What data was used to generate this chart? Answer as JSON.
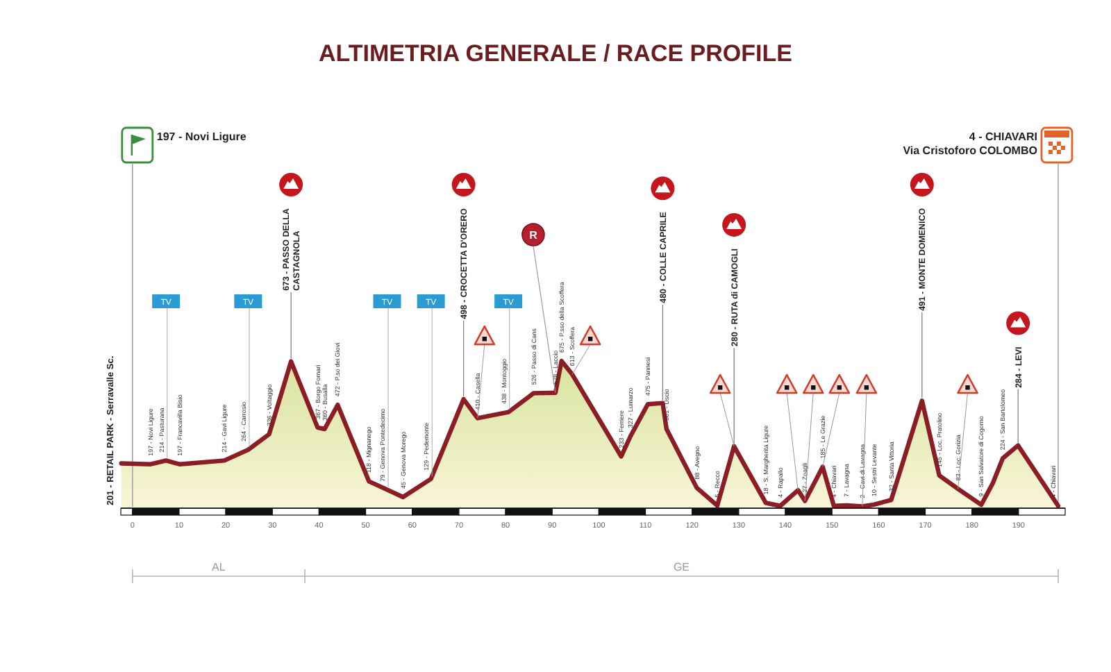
{
  "chart_data": {
    "type": "area",
    "title": "ALTIMETRIA GENERALE / RACE PROFILE",
    "color": "#8b1d24",
    "x": [
      -2.4,
      3.9,
      7.2,
      10.1,
      19.7,
      24.8,
      29.3,
      34,
      39.7,
      41.2,
      44,
      50.7,
      54.6,
      58,
      64,
      71,
      74,
      80.6,
      86,
      90.7,
      92,
      94.3,
      104.8,
      106.8,
      110.5,
      113.7,
      114.5,
      121,
      125.4,
      129,
      135.8,
      138.9,
      142.7,
      144.2,
      148,
      150.4,
      153.1,
      156.5,
      159,
      162.7,
      169.3,
      173,
      177,
      182,
      184.5,
      186.6,
      189.9,
      198.5
    ],
    "values": [
      201,
      197,
      214,
      197,
      214,
      264,
      336,
      673,
      367,
      360,
      472,
      118,
      79,
      45,
      129,
      498,
      410,
      438,
      526,
      528,
      675,
      613,
      233,
      327,
      475,
      480,
      361,
      88,
      5,
      280,
      18,
      4,
      77,
      27,
      185,
      4,
      7,
      2,
      10,
      32,
      491,
      145,
      83,
      9,
      110,
      224,
      284,
      4
    ],
    "value_labels": [
      "201 - RETAIL PARK - Serravalle Sc.",
      "197 - Novi Ligure",
      "214 - Pasturana",
      "197 - Francavilla Bisio",
      "214 - Gavi Ligure",
      "264 - Carrosio",
      "336 - Voltaggio",
      "673 - PASSO DELLA CASTAGNOLA",
      "367 - Borgo Fornari",
      "360 - Busalla",
      "472 - P.so dei Giovi",
      "118 - Mignanego",
      "79 - Genova Pontedecimo",
      "45 - Genova Morego",
      "129 - Pedemonte",
      "498 - CROCETTA D'ORERO",
      "410 - Casella",
      "438 - Montoggio",
      "526 - Passo di Cans",
      "528 - Laccio",
      "675 - P.sso della Scoffera",
      "613 - Scoffera",
      "233 - Ferriere",
      "327 - Lumarzo",
      "475 - Pannesi",
      "480 - COLLE CAPRILE",
      "361 - Uscio",
      "88 - Avegno",
      "5 - Recco",
      "280 - RUTA di CAMOGLI",
      "18 - S. Margherita Ligure",
      "4 - Rapallo",
      null,
      "27 - Zoagli",
      "185 - Le Grazie",
      "4 - Chiavari",
      "7 - Lavagna",
      "2 - Cavi di Lavagna",
      "10 - Sestri Levante",
      "32 - Santa Vittoria",
      "491 - MONTE DOMENICO",
      "145 - Loc. Pratolino",
      "83 - Loc. Gorizia",
      "9 - San Salvatore di Cogorno",
      null,
      "224 - San Bartolomeo",
      "284 - LEVI",
      "4 - Chiavari"
    ],
    "xlim": [
      -2.5,
      200
    ],
    "xticks": [
      0,
      10,
      20,
      30,
      40,
      50,
      60,
      70,
      80,
      90,
      100,
      110,
      120,
      130,
      140,
      150,
      160,
      170,
      180,
      190
    ],
    "tick_labels": "x",
    "ref_lines": [
      {
        "axis": "x",
        "value": 0,
        "label": "197 - Novi Ligure",
        "color": "#999999"
      },
      {
        "axis": "x",
        "value": 198.5,
        "label": "4 - CHIAVARI",
        "color": "#999999"
      }
    ],
    "annotations": [
      {
        "text": "R",
        "x": 90.7,
        "y": 528
      },
      {
        "text": "TV",
        "x": 7.2,
        "y": 214
      },
      {
        "text": "TV",
        "x": 24.8,
        "y": 264
      },
      {
        "text": "TV",
        "x": 54.6,
        "y": 79
      },
      {
        "text": "TV",
        "x": 64,
        "y": 129
      },
      {
        "text": "TV",
        "x": 80.6,
        "y": 438
      },
      "Via Cristoforo COLOMBO",
      "AL",
      "GE"
    ]
  }
}
